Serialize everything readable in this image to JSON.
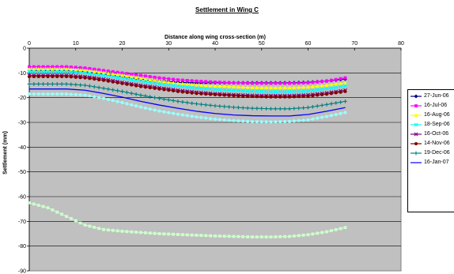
{
  "chart_data": {
    "type": "line",
    "title": "Settlement in Wing C",
    "xlabel": "Distance along wing cross-section (m)",
    "ylabel": "Settlement (mm)",
    "xlim": [
      0,
      80
    ],
    "ylim": [
      -90,
      0
    ],
    "x_ticks": [
      "0",
      "10",
      "20",
      "30",
      "40",
      "50",
      "60",
      "70",
      "80"
    ],
    "y_ticks": [
      "0",
      "-10",
      "-20",
      "-30",
      "-40",
      "-50",
      "-60",
      "-70",
      "-80",
      "-90"
    ],
    "x_axis_position": "top",
    "grid": true,
    "legend_position": "right",
    "plot_background": "#c0c0c0",
    "x": [
      0,
      4,
      8,
      12,
      16,
      20,
      24,
      28,
      32,
      36,
      40,
      44,
      48,
      52,
      56,
      60,
      64,
      68
    ],
    "series": [
      {
        "name": "27-Jun-06",
        "color": "#000080",
        "marker": "diamond",
        "values": [
          -9,
          -9,
          -9,
          -9.5,
          -10.5,
          -11.5,
          -12.5,
          -13.3,
          -13.8,
          -14,
          -14,
          -14,
          -14,
          -14,
          -14,
          -13.8,
          -13.3,
          -12.5
        ]
      },
      {
        "name": "16-Jul-06",
        "color": "#ff00ff",
        "marker": "square",
        "values": [
          -7.5,
          -7.5,
          -7.5,
          -8,
          -9,
          -10,
          -11,
          -12,
          -12.8,
          -13.3,
          -13.7,
          -14,
          -14.2,
          -14.2,
          -14.2,
          -14,
          -13.3,
          -12
        ]
      },
      {
        "name": "16-Aug-06",
        "color": "#ffff00",
        "marker": "triangle",
        "values": [
          -8.5,
          -8.5,
          -8.5,
          -9,
          -10,
          -11,
          -12.2,
          -13.3,
          -14.2,
          -14.9,
          -15.3,
          -15.6,
          -15.9,
          -16,
          -16,
          -15.7,
          -15,
          -14
        ]
      },
      {
        "name": "18-Sep-06",
        "color": "#00ffff",
        "marker": "x",
        "values": [
          -9.5,
          -9.5,
          -9.5,
          -10,
          -11,
          -12.2,
          -13.4,
          -14.5,
          -15.3,
          -16.1,
          -16.7,
          -17.1,
          -17.4,
          -17.6,
          -17.6,
          -17.3,
          -16.4,
          -15.3
        ]
      },
      {
        "name": "16-Oct-06",
        "color": "#800080",
        "marker": "x",
        "values": [
          -11,
          -11,
          -11,
          -11.5,
          -12.5,
          -13.8,
          -15,
          -16,
          -17,
          -17.8,
          -18.4,
          -18.8,
          -19.1,
          -19.2,
          -19.2,
          -18.9,
          -18.1,
          -17
        ]
      },
      {
        "name": "14-Nov-06",
        "color": "#800000",
        "marker": "circle",
        "values": [
          -11.5,
          -11.5,
          -11.5,
          -12,
          -13,
          -14.3,
          -15.5,
          -16.5,
          -17.5,
          -18.3,
          -18.8,
          -19.2,
          -19.5,
          -19.7,
          -19.7,
          -19.4,
          -18.6,
          -17.5
        ]
      },
      {
        "name": "19-Dec-06",
        "color": "#008080",
        "marker": "plus",
        "values": [
          -14.5,
          -14.5,
          -14.5,
          -15,
          -16.2,
          -17.5,
          -19,
          -20.3,
          -21.5,
          -22.5,
          -23.3,
          -23.9,
          -24.3,
          -24.5,
          -24.5,
          -24,
          -22.8,
          -21.5
        ]
      },
      {
        "name": "16-Jan-07",
        "color": "#0000ff",
        "marker": "line",
        "values": [
          -16.5,
          -16.5,
          -16.5,
          -17,
          -18.3,
          -19.8,
          -21.5,
          -23,
          -24.3,
          -25.5,
          -26.4,
          -27,
          -27.3,
          -27.4,
          -27.4,
          -26.8,
          -25.5,
          -24
        ]
      },
      {
        "name": "",
        "color": "#99ffff",
        "marker": "circle",
        "in_legend": false,
        "values": [
          -18.5,
          -18.5,
          -18.5,
          -19,
          -20.3,
          -22,
          -23.8,
          -25.4,
          -26.7,
          -27.8,
          -28.7,
          -29.3,
          -29.7,
          -29.8,
          -29.6,
          -29,
          -27.6,
          -26
        ]
      },
      {
        "name": "",
        "color": "#ccffcc",
        "marker": "square",
        "in_legend": false,
        "values": [
          -62.5,
          -64.5,
          -68,
          -71.5,
          -73.3,
          -74,
          -74.5,
          -75,
          -75.3,
          -75.6,
          -75.9,
          -76.1,
          -76.3,
          -76.3,
          -76.1,
          -75.4,
          -74.2,
          -72.5
        ]
      }
    ]
  }
}
